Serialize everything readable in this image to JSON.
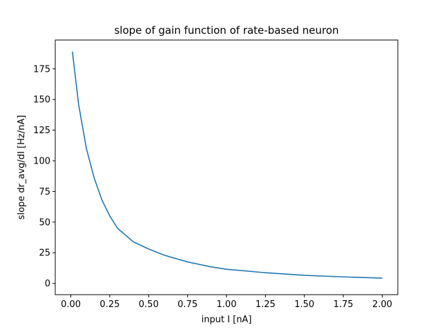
{
  "chart_data": {
    "type": "line",
    "title": "slope of gain function of rate-based neuron",
    "xlabel": "input I [nA]",
    "ylabel": "slope dr_avg/dI [Hz/nA]",
    "xlim": [
      -0.1,
      2.1
    ],
    "ylim": [
      -9.2,
      198.5
    ],
    "xticks": [
      0.0,
      0.25,
      0.5,
      0.75,
      1.0,
      1.25,
      1.5,
      1.75,
      2.0
    ],
    "xtick_labels": [
      "0.00",
      "0.25",
      "0.50",
      "0.75",
      "1.00",
      "1.25",
      "1.50",
      "1.75",
      "2.00"
    ],
    "yticks": [
      0,
      25,
      50,
      75,
      100,
      125,
      150,
      175
    ],
    "ytick_labels": [
      "0",
      "25",
      "50",
      "75",
      "100",
      "125",
      "150",
      "175"
    ],
    "grid": false,
    "series": [
      {
        "color": "#1f77b4",
        "x": [
          0.01,
          0.05,
          0.1,
          0.15,
          0.2,
          0.25,
          0.3,
          0.4,
          0.5,
          0.6,
          0.75,
          0.9,
          1.0,
          1.25,
          1.5,
          1.75,
          2.0
        ],
        "y": [
          189,
          146,
          110,
          86,
          68,
          55,
          45,
          34,
          28,
          23,
          17.5,
          13.5,
          11.5,
          8.7,
          6.6,
          5.3,
          4.3
        ]
      }
    ]
  }
}
